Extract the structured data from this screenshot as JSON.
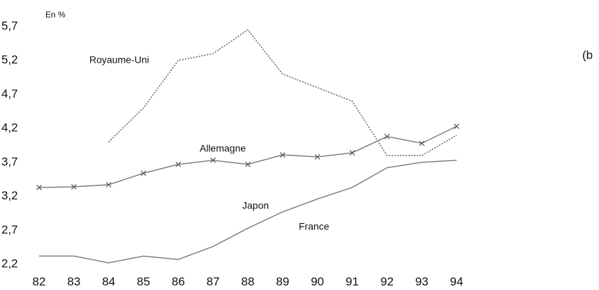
{
  "chart_data": {
    "type": "line",
    "unit_label": "En %",
    "panel_label": "(b",
    "categories": [
      "82",
      "83",
      "84",
      "85",
      "86",
      "87",
      "88",
      "89",
      "90",
      "91",
      "92",
      "93",
      "94"
    ],
    "series": [
      {
        "name": "Royaume-Uni",
        "color": "#555555",
        "style": "dotted",
        "marker": "none",
        "values": [
          null,
          null,
          4.0,
          4.5,
          5.2,
          5.3,
          5.65,
          5.0,
          4.8,
          4.6,
          3.8,
          3.8,
          4.1
        ]
      },
      {
        "name": "Allemagne",
        "color": "#777777",
        "style": "solid",
        "marker": "x",
        "values": [
          3.33,
          3.34,
          3.37,
          3.54,
          3.67,
          3.73,
          3.67,
          3.81,
          3.78,
          3.84,
          4.08,
          3.98,
          4.23
        ]
      },
      {
        "name": "Japon",
        "color": "#777777",
        "style": "solid",
        "marker": "none",
        "values": [
          2.32,
          2.32,
          2.22,
          2.32,
          2.27,
          2.46,
          2.73,
          2.97,
          3.16,
          3.33,
          3.62,
          3.7,
          3.73
        ]
      }
    ],
    "annotations": [
      "France"
    ],
    "ylim": [
      2.2,
      5.7
    ],
    "yticks": [
      {
        "value": 2.2,
        "label": "2,2"
      },
      {
        "value": 2.7,
        "label": "2,7"
      },
      {
        "value": 3.2,
        "label": "3,2"
      },
      {
        "value": 3.7,
        "label": "3,7"
      },
      {
        "value": 4.2,
        "label": "4,2"
      },
      {
        "value": 4.7,
        "label": "4,7"
      },
      {
        "value": 5.2,
        "label": "5,2"
      },
      {
        "value": 5.7,
        "label": "5,7"
      }
    ],
    "grid": false
  }
}
